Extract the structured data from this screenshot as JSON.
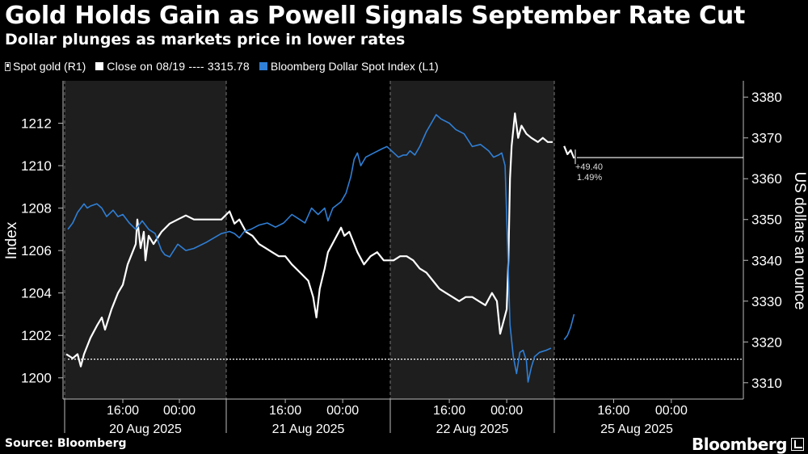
{
  "title": "Gold Holds Gain as Powell Signals September Rate Cut",
  "subtitle": "Dollar plunges as markets price in lower rates",
  "source": "Source: Bloomberg",
  "brand": "Bloomberg",
  "colors": {
    "gold": "#ffffff",
    "dollar": "#2f7fd6",
    "shade": "#1e1e1e",
    "background": "#000000"
  },
  "legend": {
    "gold": "Spot gold (R1)",
    "reference": "Close on 08/19 ---- 3315.78",
    "dollar": "Bloomberg Dollar Spot Index (L1)"
  },
  "chart_data": {
    "type": "line",
    "ylabel_left": "Index",
    "ylabel_right": "US dollars an ounce",
    "left_axis": {
      "range": [
        1199,
        1214
      ],
      "ticks": [
        1200,
        1202,
        1204,
        1206,
        1208,
        1210,
        1212
      ]
    },
    "right_axis": {
      "range": [
        3306,
        3384
      ],
      "ticks": [
        3310,
        3320,
        3330,
        3340,
        3350,
        3360,
        3370,
        3380
      ]
    },
    "days": [
      "20 Aug 2025",
      "21 Aug 2025",
      "22 Aug 2025",
      "25 Aug 2025"
    ],
    "time_ticks": [
      "16:00",
      "00:00",
      "16:00",
      "00:00",
      "16:00",
      "00:00",
      "16:00",
      "00:00"
    ],
    "reference_line": {
      "label": "Close on 08/19",
      "value": 3315.78
    },
    "annotation": {
      "change": "+49.40",
      "percent": "1.49%",
      "level": 3365.18
    },
    "series": [
      {
        "name": "Spot gold (R1)",
        "axis": "right",
        "points": [
          [
            0.01,
            3317
          ],
          [
            0.05,
            3316
          ],
          [
            0.08,
            3317
          ],
          [
            0.1,
            3314
          ],
          [
            0.12,
            3317
          ],
          [
            0.16,
            3321
          ],
          [
            0.2,
            3324
          ],
          [
            0.23,
            3326
          ],
          [
            0.25,
            3323
          ],
          [
            0.29,
            3328
          ],
          [
            0.33,
            3332
          ],
          [
            0.36,
            3334
          ],
          [
            0.39,
            3339
          ],
          [
            0.42,
            3342
          ],
          [
            0.44,
            3344
          ],
          [
            0.45,
            3350
          ],
          [
            0.47,
            3343
          ],
          [
            0.49,
            3347
          ],
          [
            0.5,
            3340
          ],
          [
            0.52,
            3346
          ],
          [
            0.55,
            3344
          ],
          [
            0.6,
            3347
          ],
          [
            0.65,
            3349
          ],
          [
            0.7,
            3350
          ],
          [
            0.75,
            3351
          ],
          [
            0.8,
            3350
          ],
          [
            0.88,
            3350
          ],
          [
            0.97,
            3350
          ],
          [
            1.02,
            3352
          ],
          [
            1.05,
            3349
          ],
          [
            1.08,
            3350
          ],
          [
            1.12,
            3347
          ],
          [
            1.16,
            3346
          ],
          [
            1.2,
            3344
          ],
          [
            1.24,
            3343
          ],
          [
            1.28,
            3342
          ],
          [
            1.32,
            3341
          ],
          [
            1.36,
            3341
          ],
          [
            1.4,
            3339
          ],
          [
            1.45,
            3337
          ],
          [
            1.5,
            3335
          ],
          [
            1.53,
            3331
          ],
          [
            1.55,
            3326
          ],
          [
            1.57,
            3333
          ],
          [
            1.6,
            3338
          ],
          [
            1.62,
            3342
          ],
          [
            1.66,
            3345
          ],
          [
            1.7,
            3348
          ],
          [
            1.72,
            3346
          ],
          [
            1.75,
            3347
          ],
          [
            1.8,
            3342
          ],
          [
            1.84,
            3339
          ],
          [
            1.88,
            3341
          ],
          [
            1.92,
            3342
          ],
          [
            1.96,
            3340
          ],
          [
            1.99,
            3340
          ],
          [
            2.02,
            3340
          ],
          [
            2.06,
            3341
          ],
          [
            2.1,
            3341
          ],
          [
            2.14,
            3340
          ],
          [
            2.18,
            3338
          ],
          [
            2.22,
            3337
          ],
          [
            2.26,
            3335
          ],
          [
            2.3,
            3333
          ],
          [
            2.34,
            3332
          ],
          [
            2.38,
            3331
          ],
          [
            2.42,
            3330
          ],
          [
            2.46,
            3331
          ],
          [
            2.5,
            3331
          ],
          [
            2.54,
            3330
          ],
          [
            2.58,
            3329
          ],
          [
            2.62,
            3332
          ],
          [
            2.65,
            3330
          ],
          [
            2.67,
            3322
          ],
          [
            2.69,
            3325
          ],
          [
            2.71,
            3328
          ],
          [
            2.72,
            3340
          ],
          [
            2.73,
            3360
          ],
          [
            2.74,
            3368
          ],
          [
            2.76,
            3376
          ],
          [
            2.78,
            3370
          ],
          [
            2.8,
            3373
          ],
          [
            2.83,
            3371
          ],
          [
            2.86,
            3370
          ],
          [
            2.9,
            3369
          ],
          [
            2.93,
            3370
          ],
          [
            2.96,
            3369
          ],
          [
            2.99,
            3369
          ],
          [
            3.06,
            3368
          ],
          [
            3.08,
            3366
          ],
          [
            3.1,
            3367
          ],
          [
            3.12,
            3365
          ]
        ]
      },
      {
        "name": "Bloomberg Dollar Spot Index (L1)",
        "axis": "left",
        "points": [
          [
            0.02,
            1207.0
          ],
          [
            0.05,
            1207.3
          ],
          [
            0.08,
            1207.8
          ],
          [
            0.1,
            1208.0
          ],
          [
            0.12,
            1208.2
          ],
          [
            0.14,
            1208.0
          ],
          [
            0.16,
            1208.1
          ],
          [
            0.2,
            1208.2
          ],
          [
            0.23,
            1208.0
          ],
          [
            0.26,
            1207.6
          ],
          [
            0.3,
            1207.9
          ],
          [
            0.33,
            1207.6
          ],
          [
            0.36,
            1207.7
          ],
          [
            0.4,
            1207.3
          ],
          [
            0.44,
            1207.0
          ],
          [
            0.48,
            1207.4
          ],
          [
            0.52,
            1207.0
          ],
          [
            0.56,
            1206.8
          ],
          [
            0.6,
            1206.0
          ],
          [
            0.62,
            1205.8
          ],
          [
            0.65,
            1205.7
          ],
          [
            0.7,
            1206.3
          ],
          [
            0.75,
            1206.0
          ],
          [
            0.8,
            1206.1
          ],
          [
            0.88,
            1206.4
          ],
          [
            0.97,
            1206.8
          ],
          [
            1.02,
            1206.9
          ],
          [
            1.05,
            1206.8
          ],
          [
            1.08,
            1206.6
          ],
          [
            1.11,
            1206.9
          ],
          [
            1.15,
            1207.0
          ],
          [
            1.2,
            1207.2
          ],
          [
            1.25,
            1207.3
          ],
          [
            1.3,
            1207.1
          ],
          [
            1.35,
            1207.3
          ],
          [
            1.4,
            1207.7
          ],
          [
            1.44,
            1207.5
          ],
          [
            1.48,
            1207.3
          ],
          [
            1.52,
            1208.0
          ],
          [
            1.56,
            1207.7
          ],
          [
            1.6,
            1208.0
          ],
          [
            1.62,
            1207.4
          ],
          [
            1.65,
            1208.0
          ],
          [
            1.7,
            1208.3
          ],
          [
            1.73,
            1208.7
          ],
          [
            1.76,
            1209.5
          ],
          [
            1.78,
            1210.3
          ],
          [
            1.8,
            1210.6
          ],
          [
            1.82,
            1210.0
          ],
          [
            1.85,
            1210.4
          ],
          [
            1.9,
            1210.6
          ],
          [
            1.95,
            1210.8
          ],
          [
            1.98,
            1210.9
          ],
          [
            2.05,
            1210.4
          ],
          [
            2.08,
            1210.5
          ],
          [
            2.1,
            1210.5
          ],
          [
            2.12,
            1210.7
          ],
          [
            2.15,
            1210.5
          ],
          [
            2.18,
            1210.9
          ],
          [
            2.22,
            1211.6
          ],
          [
            2.25,
            1212.0
          ],
          [
            2.28,
            1212.4
          ],
          [
            2.31,
            1212.2
          ],
          [
            2.36,
            1212.0
          ],
          [
            2.4,
            1211.7
          ],
          [
            2.45,
            1211.5
          ],
          [
            2.5,
            1210.9
          ],
          [
            2.55,
            1211.0
          ],
          [
            2.6,
            1210.7
          ],
          [
            2.63,
            1210.4
          ],
          [
            2.66,
            1210.5
          ],
          [
            2.68,
            1210.6
          ],
          [
            2.7,
            1210.0
          ],
          [
            2.72,
            1205.0
          ],
          [
            2.73,
            1202.5
          ],
          [
            2.75,
            1201.0
          ],
          [
            2.77,
            1200.2
          ],
          [
            2.79,
            1201.2
          ],
          [
            2.81,
            1201.3
          ],
          [
            2.83,
            1200.8
          ],
          [
            2.84,
            1199.8
          ],
          [
            2.86,
            1200.5
          ],
          [
            2.88,
            1201.0
          ],
          [
            2.91,
            1201.2
          ],
          [
            2.95,
            1201.3
          ],
          [
            2.98,
            1201.4
          ],
          [
            3.06,
            1201.8
          ],
          [
            3.08,
            1202.0
          ],
          [
            3.1,
            1202.4
          ],
          [
            3.12,
            1203.0
          ]
        ]
      }
    ]
  }
}
